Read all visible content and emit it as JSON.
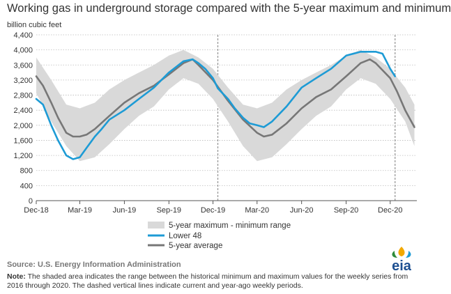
{
  "title": "Working gas in underground  storage compared with the 5-year maximum and minimum",
  "y_unit_label": "billion cubic feet",
  "source": "Source:  U.S. Energy Information Administration",
  "note_label": "Note:",
  "note_text": " The shaded area indicates the range between the historical minimum and maximum values for the weekly series from 2016 through 2020. The dashed vertical lines indicate current and year-ago weekly periods.",
  "logo_text": "eia",
  "colors": {
    "lower48": "#1d9bd5",
    "average": "#777777",
    "range": "#d9d9d9",
    "axis": "#555555",
    "dashed": "#999999"
  },
  "chart_data": {
    "type": "line",
    "title": "Working gas in underground  storage compared with the 5-year maximum and minimum",
    "ylabel": "billion cubic feet",
    "ylim": [
      0,
      4400
    ],
    "yticks": [
      0,
      400,
      800,
      1200,
      1600,
      2000,
      2400,
      2800,
      3200,
      3600,
      4000,
      4400
    ],
    "ytick_labels": [
      "0",
      "400",
      "800",
      "1,200",
      "1,600",
      "2,000",
      "2,400",
      "2,800",
      "3,200",
      "3,600",
      "4,000",
      "4,400"
    ],
    "xlim": [
      "2018-12-01",
      "2021-01-25"
    ],
    "xticks": [
      "2018-12-01",
      "2019-03-01",
      "2019-06-01",
      "2019-09-01",
      "2019-12-01",
      "2020-03-01",
      "2020-06-01",
      "2020-09-01",
      "2020-12-01"
    ],
    "xtick_labels": [
      "Dec-18",
      "Mar-19",
      "Jun-19",
      "Sep-19",
      "Dec-19",
      "Mar-20",
      "Jun-20",
      "Sep-20",
      "Dec-20"
    ],
    "vlines": [
      "2019-12-11",
      "2020-12-11"
    ],
    "legend": {
      "position": "bottom-center",
      "entries": [
        "5-year maximum - minimum range",
        "Lower 48",
        "5-year average"
      ]
    },
    "range": {
      "name": "5-year maximum - minimum range",
      "x": [
        "2018-12-01",
        "2019-01-01",
        "2019-02-01",
        "2019-03-01",
        "2019-04-01",
        "2019-05-01",
        "2019-06-01",
        "2019-07-01",
        "2019-08-01",
        "2019-09-01",
        "2019-10-01",
        "2019-11-01",
        "2019-12-01",
        "2020-01-01",
        "2020-02-01",
        "2020-03-01",
        "2020-04-01",
        "2020-05-01",
        "2020-06-01",
        "2020-07-01",
        "2020-08-01",
        "2020-09-01",
        "2020-10-01",
        "2020-11-01",
        "2020-12-01",
        "2021-01-01",
        "2021-01-20"
      ],
      "max": [
        3800,
        3200,
        2550,
        2450,
        2600,
        2950,
        3200,
        3400,
        3600,
        3850,
        4000,
        3800,
        3500,
        3000,
        2550,
        2450,
        2600,
        2950,
        3200,
        3400,
        3600,
        3850,
        4000,
        3800,
        3500,
        3000,
        2550
      ],
      "min": [
        2850,
        2100,
        1450,
        1050,
        1150,
        1500,
        1900,
        2250,
        2500,
        2950,
        3250,
        3100,
        2700,
        2100,
        1450,
        1050,
        1150,
        1500,
        1900,
        2250,
        2500,
        2950,
        3250,
        3100,
        2700,
        2100,
        1450
      ]
    },
    "series": [
      {
        "name": "Lower 48",
        "x": [
          "2018-12-01",
          "2018-12-15",
          "2019-01-01",
          "2019-01-15",
          "2019-02-01",
          "2019-02-15",
          "2019-03-01",
          "2019-03-15",
          "2019-04-01",
          "2019-04-15",
          "2019-05-01",
          "2019-06-01",
          "2019-07-01",
          "2019-08-01",
          "2019-09-01",
          "2019-10-01",
          "2019-10-20",
          "2019-11-01",
          "2019-11-15",
          "2019-12-01",
          "2019-12-11",
          "2020-01-01",
          "2020-01-15",
          "2020-02-01",
          "2020-02-15",
          "2020-03-01",
          "2020-03-15",
          "2020-04-01",
          "2020-05-01",
          "2020-06-01",
          "2020-07-01",
          "2020-08-01",
          "2020-09-01",
          "2020-10-01",
          "2020-11-01",
          "2020-11-15",
          "2020-12-01",
          "2020-12-11"
        ],
        "y": [
          2700,
          2550,
          2000,
          1600,
          1200,
          1100,
          1150,
          1400,
          1700,
          1900,
          2150,
          2400,
          2700,
          3000,
          3400,
          3700,
          3750,
          3650,
          3500,
          3250,
          2980,
          2700,
          2450,
          2200,
          2050,
          2000,
          1950,
          2100,
          2500,
          3000,
          3250,
          3500,
          3850,
          3950,
          3950,
          3900,
          3500,
          3300
        ]
      },
      {
        "name": "5-year average",
        "x": [
          "2018-12-01",
          "2018-12-15",
          "2019-01-01",
          "2019-01-15",
          "2019-02-01",
          "2019-02-15",
          "2019-03-01",
          "2019-03-15",
          "2019-04-01",
          "2019-05-01",
          "2019-06-01",
          "2019-07-01",
          "2019-08-01",
          "2019-09-01",
          "2019-10-01",
          "2019-10-20",
          "2019-11-01",
          "2019-12-01",
          "2020-01-01",
          "2020-02-01",
          "2020-03-01",
          "2020-03-15",
          "2020-04-01",
          "2020-05-01",
          "2020-06-01",
          "2020-07-01",
          "2020-08-01",
          "2020-09-01",
          "2020-10-01",
          "2020-10-20",
          "2020-11-01",
          "2020-12-01",
          "2020-12-15",
          "2021-01-01",
          "2021-01-20"
        ],
        "y": [
          3300,
          3050,
          2600,
          2200,
          1800,
          1700,
          1700,
          1750,
          1900,
          2250,
          2600,
          2850,
          3050,
          3350,
          3650,
          3750,
          3600,
          3200,
          2650,
          2150,
          1800,
          1700,
          1750,
          2050,
          2450,
          2750,
          2950,
          3300,
          3650,
          3750,
          3650,
          3250,
          2900,
          2400,
          1950
        ]
      }
    ]
  }
}
